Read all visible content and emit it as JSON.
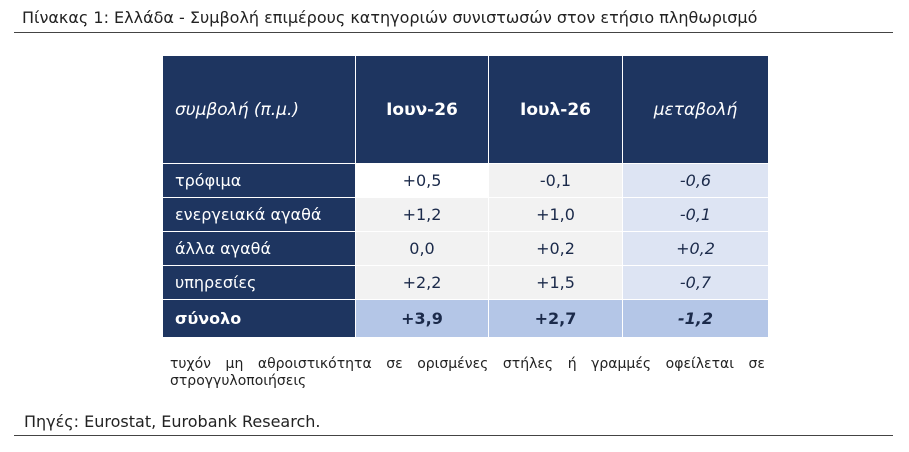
{
  "header": {
    "title": "Πίνακας 1: Ελλάδα - Συμβολή επιμέρους κατηγοριών συνιστωσών στον ετήσιο πληθωρισμό"
  },
  "table": {
    "columns": [
      "συμβολή (π.μ.)",
      "Ιουν-26",
      "Ιουλ-26",
      "μεταβολή"
    ],
    "rows": [
      [
        "τρόφιμα",
        "+0,5",
        "-0,1",
        "-0,6"
      ],
      [
        "ενεργειακά αγαθά",
        "+1,2",
        "+1,0",
        "-0,1"
      ],
      [
        "άλλα αγαθά",
        "0,0",
        "+0,2",
        "+0,2"
      ],
      [
        "υπηρεσίες",
        "+2,2",
        "+1,5",
        "-0,7"
      ],
      [
        "σύνολο",
        "+3,9",
        "+2,7",
        "-1,2"
      ]
    ]
  },
  "note": "τυχόν μη αθροιστικότητα σε ορισμένες στήλες ή γραμμές οφείλεται σε στρογγυλοποιήσεις",
  "source": "Πηγές: Eurostat, Eurobank Research."
}
